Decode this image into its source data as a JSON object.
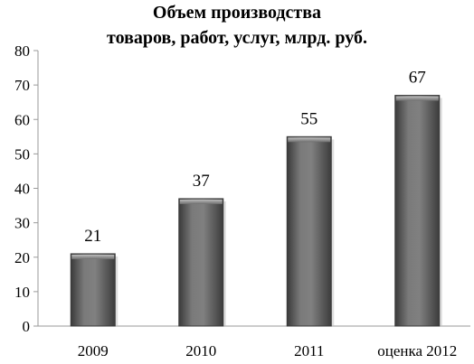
{
  "chart_data": {
    "type": "bar",
    "title_lines": [
      "Объем производства",
      "товаров, работ, услуг, млрд. руб."
    ],
    "categories": [
      "2009",
      "2010",
      "2011",
      "оценка 2012"
    ],
    "values": [
      21,
      37,
      55,
      67
    ],
    "data_labels": [
      "21",
      "37",
      "55",
      "67"
    ],
    "ylim": [
      0,
      80
    ],
    "yticks": [
      "0",
      "10",
      "20",
      "30",
      "40",
      "50",
      "60",
      "70",
      "80"
    ],
    "grid": false,
    "legend": "none",
    "bar_color": "#6b6b6b"
  }
}
